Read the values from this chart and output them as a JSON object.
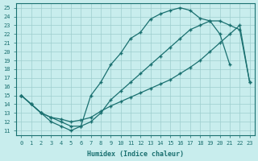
{
  "xlabel": "Humidex (Indice chaleur)",
  "bg_color": "#c8eded",
  "grid_color": "#9ecece",
  "line_color": "#1a7070",
  "xlim": [
    -0.5,
    23.5
  ],
  "ylim": [
    10.5,
    25.5
  ],
  "xticks": [
    0,
    1,
    2,
    3,
    4,
    5,
    6,
    7,
    8,
    9,
    10,
    11,
    12,
    13,
    14,
    15,
    16,
    17,
    18,
    19,
    20,
    21,
    22,
    23
  ],
  "yticks": [
    11,
    12,
    13,
    14,
    15,
    16,
    17,
    18,
    19,
    20,
    21,
    22,
    23,
    24,
    25
  ],
  "line1_x": [
    0,
    1,
    2,
    3,
    4,
    5,
    6,
    7,
    8,
    9,
    10,
    11,
    12,
    13,
    14,
    15,
    16,
    17,
    18,
    19,
    20,
    21
  ],
  "line1_y": [
    15.0,
    14.0,
    13.0,
    12.0,
    11.5,
    11.0,
    11.5,
    15.0,
    16.5,
    18.5,
    19.8,
    21.5,
    22.2,
    23.7,
    24.3,
    24.7,
    25.0,
    24.7,
    23.8,
    23.5,
    22.0,
    18.5
  ],
  "line2_x": [
    0,
    1,
    2,
    3,
    4,
    5,
    6,
    7,
    8,
    9,
    10,
    11,
    12,
    13,
    14,
    15,
    16,
    17,
    18,
    19,
    20,
    21,
    22,
    23
  ],
  "line2_y": [
    15.0,
    14.0,
    13.0,
    12.5,
    12.0,
    11.5,
    11.5,
    12.0,
    13.0,
    14.5,
    15.5,
    16.5,
    17.5,
    18.5,
    19.5,
    20.5,
    21.5,
    22.5,
    23.0,
    23.5,
    23.5,
    23.0,
    22.5,
    16.5
  ],
  "line3_x": [
    0,
    1,
    2,
    3,
    4,
    5,
    6,
    7,
    8,
    9,
    10,
    11,
    12,
    13,
    14,
    15,
    16,
    17,
    18,
    19,
    20,
    21,
    22,
    23
  ],
  "line3_y": [
    15.0,
    14.0,
    13.0,
    12.5,
    12.3,
    12.0,
    12.2,
    12.5,
    13.2,
    13.8,
    14.3,
    14.8,
    15.3,
    15.8,
    16.3,
    16.8,
    17.5,
    18.2,
    19.0,
    20.0,
    21.0,
    22.0,
    23.0,
    16.5
  ]
}
